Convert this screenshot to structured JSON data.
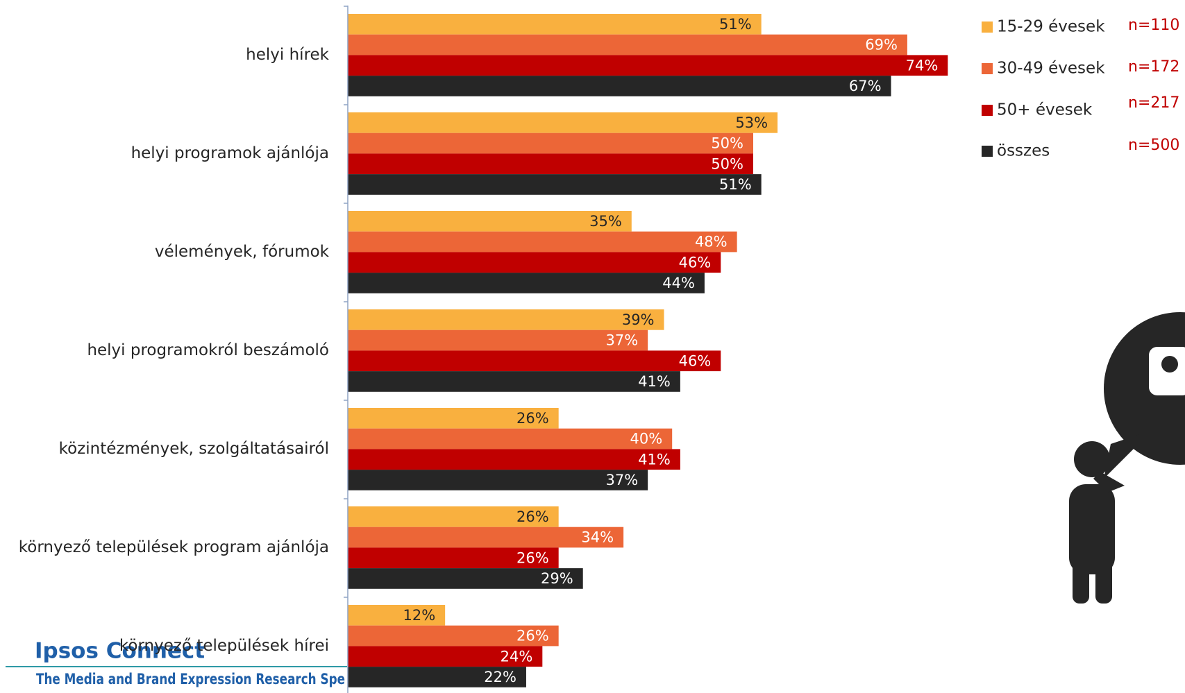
{
  "chart_data": {
    "type": "bar",
    "orientation": "horizontal",
    "categories": [
      "helyi hírek",
      "helyi programok ajánlója",
      "vélemények, fórumok",
      "helyi programokról beszámoló",
      "közintézmények, szolgáltatásairól",
      "környező települések program ajánlója",
      "környező települések hírei"
    ],
    "series": [
      {
        "name": "15-29 évesek",
        "n": "n=110",
        "color": "#F9B03F",
        "label_color": "#262626",
        "values": [
          51,
          53,
          35,
          39,
          26,
          26,
          12
        ],
        "value_labels": [
          "51%",
          "53%",
          "35%",
          "39%",
          "26%",
          "26%",
          "12%"
        ]
      },
      {
        "name": "30-49 évesek",
        "n": "n=172",
        "color": "#EC6637",
        "label_color": "#ffffff",
        "values": [
          69,
          50,
          48,
          37,
          40,
          34,
          26
        ],
        "value_labels": [
          "69%",
          "50%",
          "48%",
          "37%",
          "40%",
          "34%",
          "26%"
        ]
      },
      {
        "name": "50+ évesek",
        "n": "n=217",
        "color": "#C00000",
        "label_color": "#ffffff",
        "values": [
          74,
          50,
          46,
          46,
          41,
          26,
          24
        ],
        "value_labels": [
          "74%",
          "50%",
          "46%",
          "46%",
          "41%",
          "26%",
          "24%"
        ]
      },
      {
        "name": "összes",
        "n": "n=500",
        "color": "#262626",
        "label_color": "#ffffff",
        "values": [
          67,
          51,
          44,
          41,
          37,
          29,
          22
        ],
        "value_labels": [
          "67%",
          "51%",
          "44%",
          "41%",
          "37%",
          "29%",
          "22%"
        ]
      }
    ]
  },
  "footer": {
    "brand": "Ipsos Connect",
    "tagline": "The Media and Brand Expression Research Spe"
  }
}
